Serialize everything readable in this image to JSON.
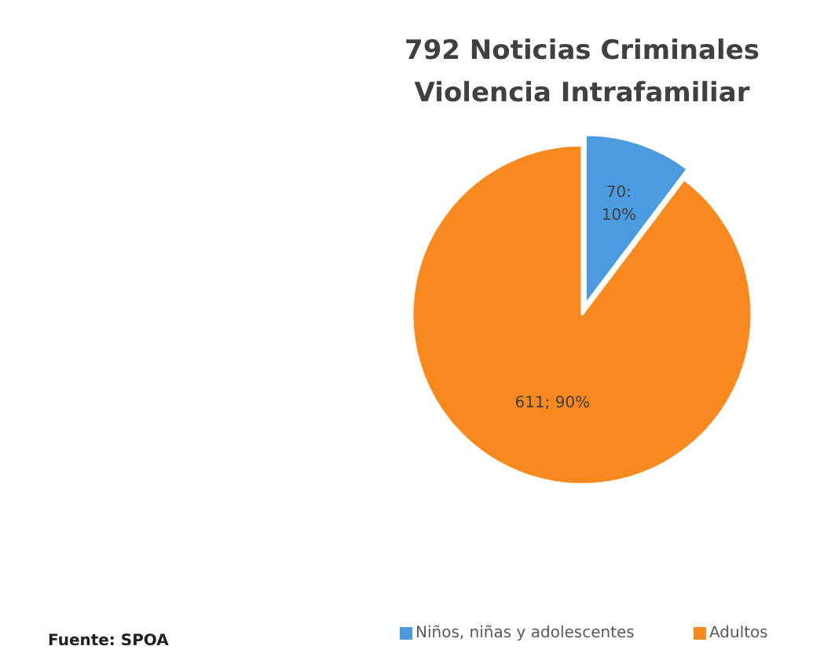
{
  "chart_data": {
    "type": "pie",
    "title": "792 Noticias Criminales\nViolencia Intrafamiliar",
    "categories": [
      "Niños, niñas y adolescentes",
      "Adultos"
    ],
    "values": [
      70,
      611
    ],
    "colors": [
      "#4a9be0",
      "#f7891f"
    ],
    "value_labels": [
      "70: 10%",
      "611; 90%"
    ],
    "legend": "bottom",
    "annotations": [
      "Fuente: SPOA"
    ]
  }
}
